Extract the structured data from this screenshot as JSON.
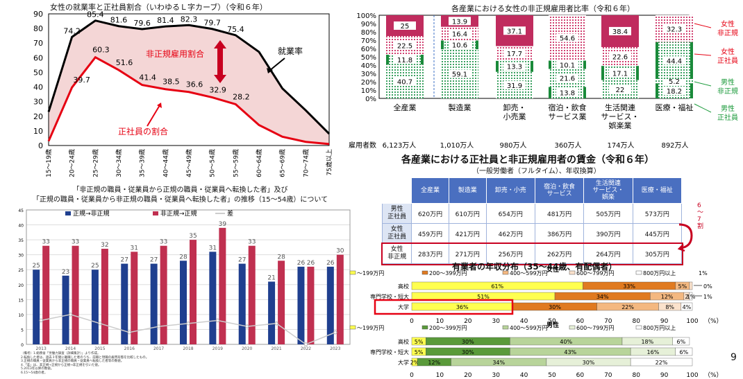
{
  "slide_number": "9",
  "colors": {
    "navy": "#1f3f8f",
    "crimson": "#c03050",
    "pink_fill": "#f4d6d6",
    "red_line": "#e60012",
    "table_head": "#4a6fc0"
  },
  "chart_data": [
    {
      "id": "lcurve",
      "type": "line",
      "title": "女性の就業率と正社員割合（いわゆるＬ字カーブ）（令和６年）",
      "x": [
        "15～19歳",
        "20～24歳",
        "25～29歳",
        "30～34歳",
        "35～39歳",
        "40～44歳",
        "45～49歳",
        "50～54歳",
        "55～59歳",
        "60～64歳",
        "65～69歳",
        "70～74歳",
        "75歳以上"
      ],
      "series": [
        {
          "name": "就業率",
          "values": [
            23.0,
            74.2,
            85.4,
            81.6,
            79.6,
            81.4,
            82.3,
            79.7,
            75.4,
            64.0,
            39.0,
            24.0,
            8.0
          ],
          "labels": [
            null,
            "74.2",
            "85.4",
            "81.6",
            "79.6",
            "81.4",
            "82.3",
            "79.7",
            "75.4",
            null,
            null,
            null,
            null
          ]
        },
        {
          "name": "正社員の割合",
          "values": [
            3.0,
            39.7,
            60.3,
            51.6,
            41.4,
            38.5,
            36.6,
            32.9,
            28.2,
            14.0,
            6.0,
            2.5,
            1.0
          ],
          "labels": [
            null,
            "39.7",
            "60.3",
            "51.6",
            "41.4",
            "38.5",
            "36.6",
            "32.9",
            "28.2",
            null,
            null,
            null,
            null
          ]
        }
      ],
      "area_label": "非正規雇用割合",
      "ylim": [
        0,
        90
      ],
      "yticks": [
        "0",
        "10",
        "20",
        "30",
        "40",
        "50",
        "60",
        "70",
        "80",
        "90"
      ]
    },
    {
      "id": "stack",
      "type": "bar",
      "title": "各産業における女性の非正規雇用者比率（令和６年）",
      "categories": [
        "全産業",
        "製造業",
        "卸売・\n小売業",
        "宿泊・飲食\nサービス業",
        "生活関連\nサービス・\n娯楽業",
        "医療・福祉"
      ],
      "series": [
        {
          "name": "男性正社員",
          "values": [
            0,
            0,
            0,
            13.8,
            0,
            18.2
          ]
        },
        {
          "name": "男性非正規",
          "values": [
            40.7,
            59.1,
            31.9,
            21.6,
            22.0,
            5.2
          ]
        },
        {
          "name": "女性正社員",
          "values": [
            11.8,
            10.6,
            13.3,
            10.1,
            17.1,
            44.4
          ]
        },
        {
          "name": "女性非正規",
          "values": [
            22.5,
            16.4,
            17.7,
            54.6,
            22.6,
            32.3
          ]
        },
        {
          "name": "top",
          "values": [
            25.0,
            13.9,
            37.1,
            0,
            38.4,
            0
          ]
        }
      ],
      "legend_labels": [
        "女性\n非正規",
        "女性\n正社員",
        "男性\n非正規",
        "男性\n正社員"
      ],
      "yticks": [
        "0%",
        "10%",
        "20%",
        "30%",
        "40%",
        "50%",
        "60%",
        "70%",
        "80%",
        "90%",
        "100%"
      ],
      "employed_label": "雇用者数",
      "employed": [
        "6,123万人",
        "1,010万人",
        "980万人",
        "360万人",
        "174万人",
        "892万人"
      ]
    },
    {
      "id": "trans",
      "type": "bar",
      "title": "「非正規の職員・従業員から正規の職員・従業員へ転換した者」及び\n「正規の職員・従業員から非正規の職員・従業員へ転換した者」の推移（15～54歳）について",
      "categories": [
        "2013",
        "2014",
        "2015",
        "2016",
        "2017",
        "2018",
        "2019",
        "2020",
        "2021",
        "2022",
        "2023"
      ],
      "series": [
        {
          "name": "正規→非正規",
          "values": [
            25,
            23,
            25,
            27,
            27,
            28,
            31,
            27,
            21,
            26,
            26
          ]
        },
        {
          "name": "非正規→正規",
          "values": [
            33,
            33,
            32,
            31,
            33,
            35,
            39,
            33,
            28,
            26,
            30
          ]
        },
        {
          "name": "差",
          "values": [
            8,
            10,
            7,
            4,
            6,
            7,
            8,
            6,
            7,
            0,
            4
          ]
        }
      ],
      "ylim": [
        0,
        45
      ],
      "yticks": [
        "0",
        "5",
        "10",
        "15",
        "20",
        "25",
        "30",
        "35",
        "40",
        "45"
      ],
      "footnotes": [
        "（備考）1.総務省「労働力調査（詳細集計）」より作成。",
        "2.転換した者は、過去３年間に離職した者のうち、前職と現職の雇用形態を比較したもの。",
        "3.正規の職員・従業員から非正規の職員・従業員へ転換した者等の数値。",
        "4.「差」は、非正規→正規から正規→非正規を引いた値。",
        "5.2013年以降の数値。",
        "6.15～54歳の者。"
      ]
    },
    {
      "id": "wage",
      "type": "table",
      "title": "各産業における正社員と非正規雇用者の賃金（令和６年）",
      "subtitle": "（一般労働者（フルタイム）、年収換算）",
      "columns": [
        "全産業",
        "製造業",
        "卸売・小売",
        "宿泊・飲食\nサービス",
        "生活関連\nサービス・\n娯楽",
        "医療・福祉"
      ],
      "rows": [
        {
          "label": "男性\n正社員",
          "values": [
            "620万円",
            "610万円",
            "654万円",
            "481万円",
            "505万円",
            "573万円"
          ]
        },
        {
          "label": "女性\n正社員",
          "values": [
            "459万円",
            "421万円",
            "462万円",
            "386万円",
            "390万円",
            "445万円"
          ]
        },
        {
          "label": "女性\n非正規",
          "values": [
            "283万円",
            "271万円",
            "256万円",
            "262万円",
            "264万円",
            "305万円"
          ]
        }
      ],
      "note": "6～7割"
    },
    {
      "id": "income",
      "type": "bar",
      "title": "有業者の年収分布（35～44歳、有配偶者）",
      "legend": [
        "～199万円",
        "200～399万円",
        "400～599万円",
        "600～799万円",
        "800万円以上"
      ],
      "female_label": "女性",
      "male_label": "男性",
      "female": [
        {
          "label": "高校",
          "values": [
            61,
            33,
            5,
            1,
            0
          ],
          "text": [
            "61%",
            "33%",
            "5%",
            "",
            ""
          ],
          "outside": "0%"
        },
        {
          "label": "専門学校・短大",
          "values": [
            51,
            34,
            12,
            2,
            1
          ],
          "text": [
            "51%",
            "34%",
            "12%",
            "2",
            "1%"
          ],
          "outside": "1%"
        },
        {
          "label": "大学",
          "values": [
            36,
            30,
            22,
            8,
            4
          ],
          "text": [
            "36%",
            "30%",
            "22%",
            "8%",
            "4%"
          ],
          "outside": ""
        }
      ],
      "male": [
        {
          "label": "高校",
          "values": [
            5,
            30,
            40,
            18,
            6
          ],
          "text": [
            "5%",
            "30%",
            "40%",
            "18%",
            "6%"
          ]
        },
        {
          "label": "専門学校・短大",
          "values": [
            5,
            30,
            43,
            16,
            6
          ],
          "text": [
            "5%",
            "30%",
            "43%",
            "16%",
            "6%"
          ]
        },
        {
          "label": "大学",
          "values": [
            2,
            12,
            34,
            30,
            22
          ],
          "text": [
            "2%",
            "12%",
            "34%",
            "30%",
            "22%"
          ]
        }
      ],
      "top_note": "1%",
      "xticks": [
        "0",
        "10",
        "20",
        "30",
        "40",
        "50",
        "60",
        "70",
        "80",
        "90",
        "100"
      ],
      "unit": "（%）"
    }
  ]
}
